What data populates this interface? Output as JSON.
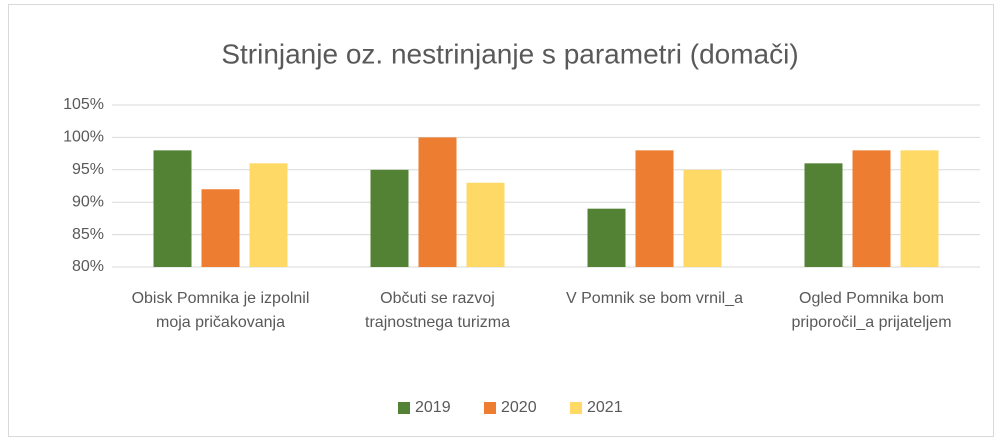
{
  "chart_data": {
    "type": "bar",
    "title": "Strinjanje oz. nestrinjanje s parametri (domači)",
    "categories": [
      "Obisk Pomnika je izpolnil moja pričakovanja",
      "Občuti se razvoj trajnostnega turizma",
      "V Pomnik se bom vrnil_a",
      "Ogled Pomnika bom priporočil_a prijateljem"
    ],
    "series": [
      {
        "name": "2019",
        "color": "#548235",
        "values": [
          98,
          95,
          89,
          96
        ]
      },
      {
        "name": "2020",
        "color": "#ed7d31",
        "values": [
          92,
          100,
          98,
          98
        ]
      },
      {
        "name": "2021",
        "color": "#ffd966",
        "values": [
          96,
          93,
          95,
          98
        ]
      }
    ],
    "ylim": [
      80,
      105
    ],
    "yticks": [
      {
        "value": 80,
        "label": "80%"
      },
      {
        "value": 85,
        "label": "85%"
      },
      {
        "value": 90,
        "label": "90%"
      },
      {
        "value": 95,
        "label": "95%"
      },
      {
        "value": 100,
        "label": "100%"
      },
      {
        "value": 105,
        "label": "105%"
      }
    ],
    "grid": true,
    "legend": "bottom"
  }
}
